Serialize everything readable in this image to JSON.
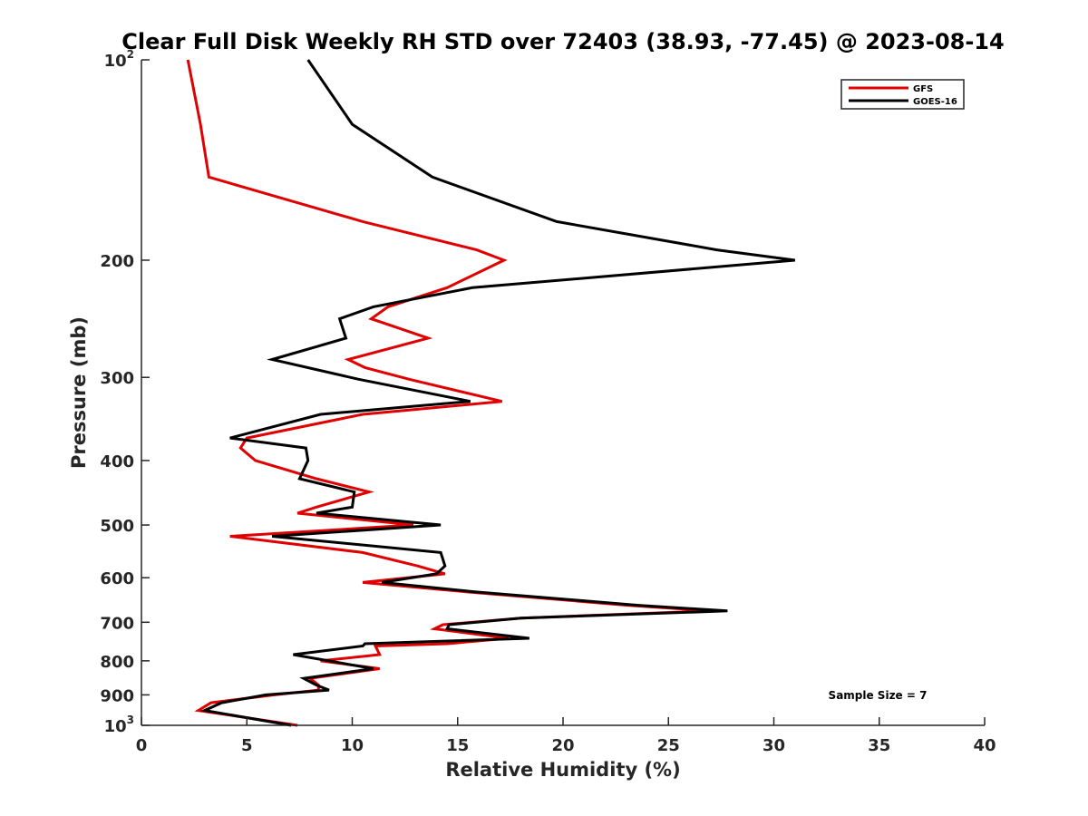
{
  "chart_data": {
    "type": "line",
    "title": "Clear Full Disk Weekly RH STD over 72403 (38.93, -77.45) @ 2023-08-14",
    "xlabel": "Relative Humidity (%)",
    "ylabel": "Pressure (mb)",
    "xlim": [
      0,
      40
    ],
    "ylim": [
      100,
      1000
    ],
    "y_scale": "log",
    "y_reversed": true,
    "grid": false,
    "legend_position": "top-right",
    "x_ticks": [
      "0",
      "5",
      "10",
      "15",
      "20",
      "25",
      "30",
      "35",
      "40"
    ],
    "y_ticks": [
      {
        "value": 100,
        "base": "10",
        "exp": "2"
      },
      {
        "value": 200,
        "label": "200"
      },
      {
        "value": 300,
        "label": "300"
      },
      {
        "value": 400,
        "label": "400"
      },
      {
        "value": 500,
        "label": "500"
      },
      {
        "value": 600,
        "label": "600"
      },
      {
        "value": 700,
        "label": "700"
      },
      {
        "value": 800,
        "label": "800"
      },
      {
        "value": 900,
        "label": "900"
      },
      {
        "value": 1000,
        "base": "10",
        "exp": "3"
      }
    ],
    "annotation": "Sample Size = 7",
    "series": [
      {
        "name": "GFS",
        "color": "#e00000",
        "points": [
          [
            2.2,
            100
          ],
          [
            2.8,
            125
          ],
          [
            3.2,
            150
          ],
          [
            10.5,
            175
          ],
          [
            15.9,
            193
          ],
          [
            17.2,
            200
          ],
          [
            14.5,
            220
          ],
          [
            11.7,
            235
          ],
          [
            10.9,
            245
          ],
          [
            13.6,
            262
          ],
          [
            9.8,
            282
          ],
          [
            10.6,
            290
          ],
          [
            12.7,
            302
          ],
          [
            17.1,
            326
          ],
          [
            10.5,
            341
          ],
          [
            5.0,
            370
          ],
          [
            4.7,
            383
          ],
          [
            5.4,
            400
          ],
          [
            8.3,
            426
          ],
          [
            10.8,
            446
          ],
          [
            8.3,
            470
          ],
          [
            7.4,
            480
          ],
          [
            12.9,
            500
          ],
          [
            4.2,
            520
          ],
          [
            10.5,
            550
          ],
          [
            13.1,
            576
          ],
          [
            14.4,
            592
          ],
          [
            10.5,
            610
          ],
          [
            15.4,
            630
          ],
          [
            23.0,
            660
          ],
          [
            27.0,
            673
          ],
          [
            18.0,
            690
          ],
          [
            14.3,
            706
          ],
          [
            13.9,
            716
          ],
          [
            17.4,
            740
          ],
          [
            14.5,
            754
          ],
          [
            11.1,
            760
          ],
          [
            11.3,
            783
          ],
          [
            8.5,
            800
          ],
          [
            11.3,
            822
          ],
          [
            8.0,
            850
          ],
          [
            8.4,
            870
          ],
          [
            8.4,
            885
          ],
          [
            6.3,
            900
          ],
          [
            3.3,
            925
          ],
          [
            2.7,
            950
          ],
          [
            7.4,
            1000
          ]
        ]
      },
      {
        "name": "GOES-16",
        "color": "#000000",
        "points": [
          [
            7.9,
            100
          ],
          [
            10.0,
            125
          ],
          [
            13.8,
            150
          ],
          [
            19.7,
            175
          ],
          [
            27.3,
            193
          ],
          [
            31.0,
            200
          ],
          [
            15.7,
            220
          ],
          [
            11.0,
            235
          ],
          [
            9.4,
            245
          ],
          [
            9.7,
            262
          ],
          [
            6.2,
            282
          ],
          [
            10.3,
            302
          ],
          [
            15.6,
            326
          ],
          [
            8.5,
            341
          ],
          [
            4.2,
            370
          ],
          [
            7.8,
            383
          ],
          [
            7.9,
            400
          ],
          [
            7.5,
            426
          ],
          [
            10.1,
            446
          ],
          [
            10.0,
            470
          ],
          [
            8.3,
            480
          ],
          [
            14.2,
            500
          ],
          [
            6.2,
            520
          ],
          [
            14.2,
            550
          ],
          [
            14.4,
            576
          ],
          [
            14.0,
            592
          ],
          [
            11.4,
            610
          ],
          [
            15.8,
            630
          ],
          [
            23.5,
            660
          ],
          [
            27.8,
            673
          ],
          [
            18.0,
            690
          ],
          [
            14.6,
            706
          ],
          [
            14.5,
            716
          ],
          [
            18.4,
            740
          ],
          [
            10.6,
            754
          ],
          [
            10.5,
            760
          ],
          [
            7.2,
            783
          ],
          [
            11.0,
            822
          ],
          [
            7.7,
            850
          ],
          [
            8.3,
            870
          ],
          [
            8.9,
            885
          ],
          [
            5.9,
            900
          ],
          [
            3.8,
            925
          ],
          [
            3.0,
            950
          ],
          [
            7.1,
            1000
          ]
        ]
      }
    ]
  }
}
